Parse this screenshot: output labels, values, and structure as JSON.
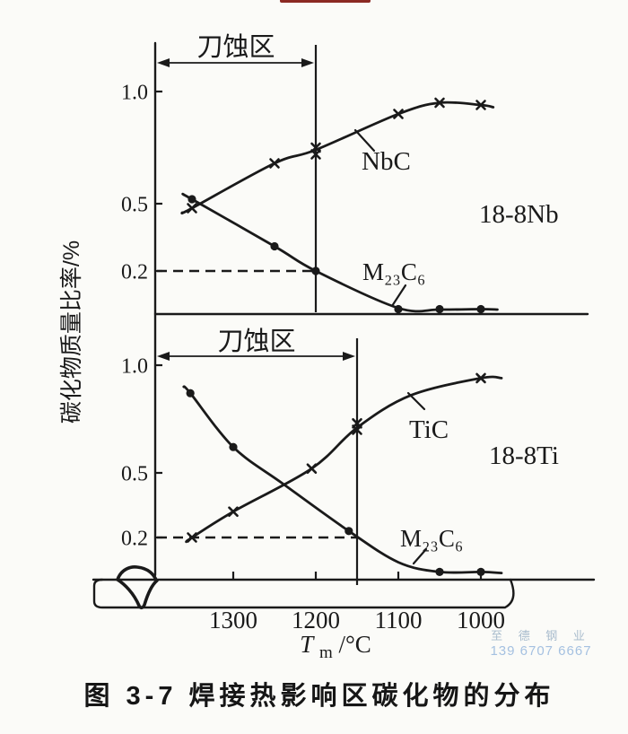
{
  "page": {
    "top_edge_bar_color": "#8b2a23",
    "watermark": {
      "line1": "至 德 钢 业",
      "line2": "139 6707 6667",
      "color1": "#a9bccd",
      "color2": "#a5c1e1"
    }
  },
  "chart_data": {
    "type": "line",
    "title": "图 3-7  焊接热影响区碳化物的分布",
    "ylabel": "碳化物质量比率/%",
    "xlabel": "Tm/°C",
    "x_title_parts": {
      "main": "T",
      "sub": "m",
      "rest": "/°C"
    },
    "x_ticks_c": [
      1300,
      1200,
      1100,
      1000
    ],
    "x_tick_labels": [
      "1300",
      "1200",
      "1100",
      "1000"
    ],
    "x_direction": "temperature decreases to the right",
    "ytick_values": [
      1.0,
      0.5,
      0.2
    ],
    "ytick_labels": [
      "1.0",
      "0.5",
      "0.2"
    ],
    "grid": "off",
    "panels": [
      {
        "alloy": "18-8Nb",
        "zone_label": "刀蚀区",
        "zone_boundary_temp_c": 1200,
        "dashed_reference_value": 0.2,
        "series": [
          {
            "name": "NbC",
            "marker": "x",
            "points": [
              [
                1350,
                0.48
              ],
              [
                1250,
                0.68
              ],
              [
                1200,
                0.75
              ],
              [
                1200,
                0.72
              ],
              [
                1100,
                0.9
              ],
              [
                1050,
                0.95
              ],
              [
                1000,
                0.94
              ]
            ],
            "curve": [
              [
                1362,
                0.46
              ],
              [
                1350,
                0.48
              ],
              [
                1250,
                0.68
              ],
              [
                1200,
                0.74
              ],
              [
                1100,
                0.9
              ],
              [
                1050,
                0.95
              ],
              [
                1000,
                0.94
              ],
              [
                985,
                0.93
              ]
            ]
          },
          {
            "name": "M₂₃C₆",
            "marker": "dot",
            "points": [
              [
                1350,
                0.52
              ],
              [
                1250,
                0.31
              ],
              [
                1200,
                0.2
              ],
              [
                1100,
                0.03
              ],
              [
                1050,
                0.03
              ],
              [
                1000,
                0.03
              ]
            ],
            "curve": [
              [
                1360,
                0.54
              ],
              [
                1350,
                0.52
              ],
              [
                1250,
                0.31
              ],
              [
                1200,
                0.2
              ],
              [
                1100,
                0.035
              ],
              [
                1050,
                0.028
              ],
              [
                1000,
                0.03
              ],
              [
                980,
                0.028
              ]
            ]
          }
        ]
      },
      {
        "alloy": "18-8Ti",
        "zone_label": "刀蚀区",
        "zone_boundary_temp_c": 1150,
        "dashed_reference_value": 0.2,
        "series": [
          {
            "name": "TiC",
            "marker": "x",
            "points": [
              [
                1350,
                0.2
              ],
              [
                1300,
                0.32
              ],
              [
                1205,
                0.52
              ],
              [
                1150,
                0.73
              ],
              [
                1150,
                0.7
              ],
              [
                1000,
                0.94
              ]
            ],
            "curve": [
              [
                1357,
                0.18
              ],
              [
                1350,
                0.2
              ],
              [
                1300,
                0.32
              ],
              [
                1205,
                0.52
              ],
              [
                1150,
                0.71
              ],
              [
                1085,
                0.86
              ],
              [
                1000,
                0.94
              ],
              [
                975,
                0.94
              ]
            ]
          },
          {
            "name": "M₂₃C₆",
            "marker": "dot",
            "points": [
              [
                1352,
                0.87
              ],
              [
                1300,
                0.62
              ],
              [
                1160,
                0.23
              ],
              [
                1050,
                0.04
              ],
              [
                1000,
                0.04
              ]
            ],
            "curve": [
              [
                1360,
                0.9
              ],
              [
                1352,
                0.87
              ],
              [
                1300,
                0.62
              ],
              [
                1240,
                0.45
              ],
              [
                1160,
                0.23
              ],
              [
                1100,
                0.085
              ],
              [
                1050,
                0.04
              ],
              [
                1000,
                0.04
              ],
              [
                975,
                0.035
              ]
            ]
          }
        ]
      }
    ]
  }
}
